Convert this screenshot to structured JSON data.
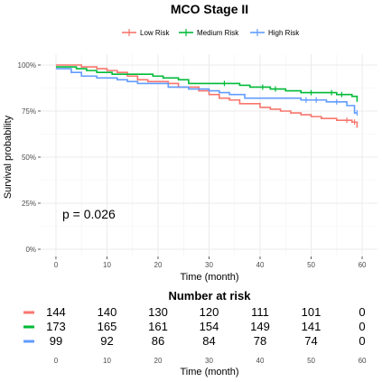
{
  "chart_data": {
    "type": "line",
    "title": "MCO Stage II",
    "xlabel": "Time (month)",
    "ylabel": "Survival probability",
    "xlim": [
      -3,
      63
    ],
    "ylim": [
      0,
      1
    ],
    "x_ticks": [
      0,
      10,
      20,
      30,
      40,
      50,
      60
    ],
    "y_ticks": [
      0,
      0.25,
      0.5,
      0.75,
      1.0
    ],
    "y_tick_labels": [
      "0%",
      "25%",
      "50%",
      "75%",
      "100%"
    ],
    "grid": true,
    "legend_position": "top",
    "annotation": "p = 0.026",
    "series": [
      {
        "name": "Low Risk",
        "color": "#F8766D",
        "steps": [
          [
            0,
            1.0
          ],
          [
            5,
            0.99
          ],
          [
            8,
            0.98
          ],
          [
            10,
            0.97
          ],
          [
            12,
            0.96
          ],
          [
            14,
            0.94
          ],
          [
            16,
            0.92
          ],
          [
            18,
            0.91
          ],
          [
            22,
            0.9
          ],
          [
            24,
            0.88
          ],
          [
            28,
            0.86
          ],
          [
            30,
            0.84
          ],
          [
            32,
            0.82
          ],
          [
            34,
            0.81
          ],
          [
            36,
            0.79
          ],
          [
            40,
            0.77
          ],
          [
            42,
            0.76
          ],
          [
            44,
            0.75
          ],
          [
            46,
            0.74
          ],
          [
            48,
            0.73
          ],
          [
            50,
            0.72
          ],
          [
            52,
            0.71
          ],
          [
            55,
            0.7
          ],
          [
            58,
            0.69
          ],
          [
            59,
            0.66
          ]
        ],
        "end": 59,
        "censor_times": [
          57,
          58.5
        ]
      },
      {
        "name": "Medium Risk",
        "color": "#00BA38",
        "steps": [
          [
            0,
            0.99
          ],
          [
            4,
            0.98
          ],
          [
            6,
            0.97
          ],
          [
            8,
            0.96
          ],
          [
            11,
            0.95
          ],
          [
            19,
            0.94
          ],
          [
            21,
            0.93
          ],
          [
            24,
            0.92
          ],
          [
            26,
            0.9
          ],
          [
            36,
            0.89
          ],
          [
            38,
            0.88
          ],
          [
            42,
            0.87
          ],
          [
            45,
            0.86
          ],
          [
            48,
            0.85
          ],
          [
            55,
            0.84
          ],
          [
            58,
            0.83
          ],
          [
            59,
            0.8
          ]
        ],
        "end": 59,
        "censor_times": [
          33,
          40.5,
          43,
          50,
          54,
          56
        ]
      },
      {
        "name": "High Risk",
        "color": "#619CFF",
        "steps": [
          [
            0,
            0.98
          ],
          [
            3,
            0.96
          ],
          [
            5,
            0.94
          ],
          [
            8,
            0.93
          ],
          [
            12,
            0.92
          ],
          [
            14,
            0.91
          ],
          [
            16,
            0.9
          ],
          [
            22,
            0.88
          ],
          [
            26,
            0.87
          ],
          [
            30,
            0.86
          ],
          [
            32,
            0.85
          ],
          [
            34,
            0.84
          ],
          [
            37,
            0.82
          ],
          [
            48,
            0.81
          ],
          [
            53,
            0.8
          ],
          [
            57,
            0.78
          ],
          [
            58.5,
            0.74
          ]
        ],
        "end": 59,
        "censor_times": [
          49,
          51,
          55,
          59
        ]
      }
    ]
  },
  "risk_table": {
    "title": "Number at risk",
    "xlabel": "Time (month)",
    "times": [
      0,
      10,
      20,
      30,
      40,
      50,
      60
    ],
    "rows": [
      {
        "name": "Low Risk",
        "color": "#F8766D",
        "values": [
          144,
          140,
          130,
          120,
          111,
          101,
          0
        ]
      },
      {
        "name": "Medium Risk",
        "color": "#00BA38",
        "values": [
          173,
          165,
          161,
          154,
          149,
          141,
          0
        ]
      },
      {
        "name": "High Risk",
        "color": "#619CFF",
        "values": [
          99,
          92,
          86,
          84,
          78,
          74,
          0
        ]
      }
    ]
  }
}
